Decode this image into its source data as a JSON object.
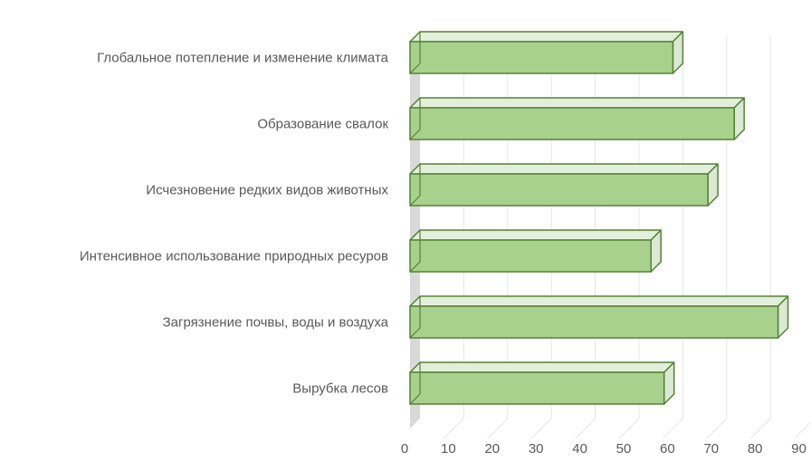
{
  "chart_data": {
    "type": "bar",
    "orientation": "horizontal",
    "style": "3d",
    "categories": [
      "Глобальное потепление и изменение климата",
      "Образование свалок",
      "Исчезновение редких видов животных",
      "Интенсивное использование природных ресуров",
      "Загрязнение почвы, воды и воздуха",
      "Вырубка лесов"
    ],
    "values": [
      60,
      74,
      68,
      55,
      84,
      58
    ],
    "xlim": [
      0,
      90
    ],
    "ticks": [
      "0",
      "10",
      "20",
      "30",
      "40",
      "50",
      "60",
      "70",
      "80",
      "90"
    ],
    "grid": true,
    "colors": {
      "bar_fill": "#a9d18e",
      "bar_top": "#e2efda",
      "bar_side": "#dbe8d3",
      "bar_stroke": "#548235",
      "wall": "#d9d9d9",
      "grid": "#e6e6e6",
      "label": "#595959"
    }
  }
}
